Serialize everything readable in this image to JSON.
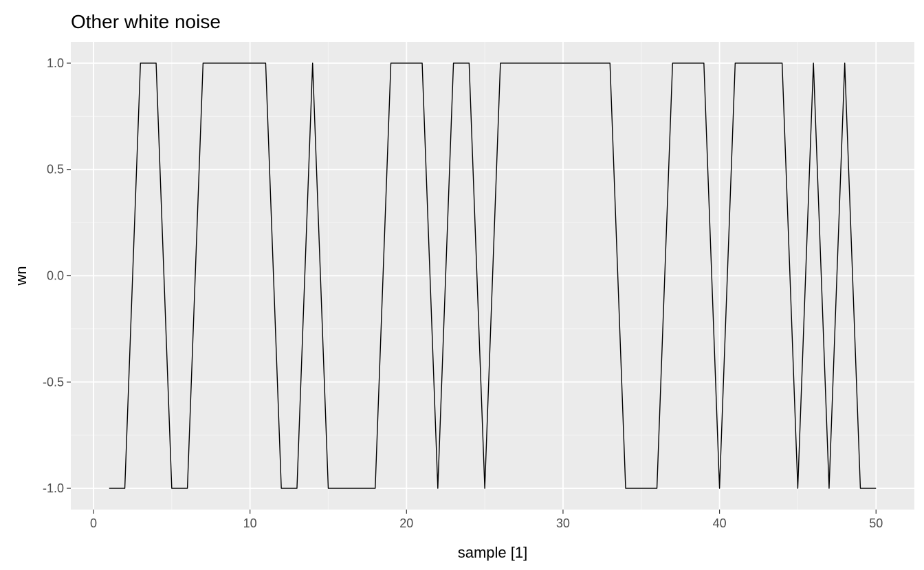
{
  "chart_data": {
    "type": "line",
    "title": "Other white noise",
    "xlabel": "sample [1]",
    "ylabel": "wn",
    "xlim": [
      -1.45,
      52.45
    ],
    "ylim": [
      -1.1,
      1.1
    ],
    "x_ticks": [
      0,
      10,
      20,
      30,
      40,
      50
    ],
    "x_tick_labels": [
      "0",
      "10",
      "20",
      "30",
      "40",
      "50"
    ],
    "x_minor_ticks": [
      5,
      15,
      25,
      35,
      45
    ],
    "y_ticks": [
      -1.0,
      -0.5,
      0.0,
      0.5,
      1.0
    ],
    "y_tick_labels": [
      "-1.0",
      "-0.5",
      "0.0",
      "0.5",
      "1.0"
    ],
    "y_minor_ticks": [
      -0.75,
      -0.25,
      0.25,
      0.75
    ],
    "grid": true,
    "x": [
      1,
      2,
      3,
      4,
      5,
      6,
      7,
      8,
      9,
      10,
      11,
      12,
      13,
      14,
      15,
      16,
      17,
      18,
      19,
      20,
      21,
      22,
      23,
      24,
      25,
      26,
      27,
      28,
      29,
      30,
      31,
      32,
      33,
      34,
      35,
      36,
      37,
      38,
      39,
      40,
      41,
      42,
      43,
      44,
      45,
      46,
      47,
      48,
      49,
      50
    ],
    "values": [
      -1,
      -1,
      1,
      1,
      -1,
      -1,
      1,
      1,
      1,
      1,
      1,
      -1,
      -1,
      1,
      -1,
      -1,
      -1,
      -1,
      1,
      1,
      1,
      -1,
      1,
      1,
      -1,
      1,
      1,
      1,
      1,
      1,
      1,
      1,
      1,
      -1,
      -1,
      -1,
      1,
      1,
      1,
      -1,
      1,
      1,
      1,
      1,
      -1,
      1,
      -1,
      1,
      -1,
      -1
    ],
    "colors": {
      "panel_background": "#EBEBEB",
      "grid_major": "#FFFFFF",
      "grid_minor": "#F5F5F5",
      "line": "#000000",
      "tick_text": "#4D4D4D"
    }
  }
}
